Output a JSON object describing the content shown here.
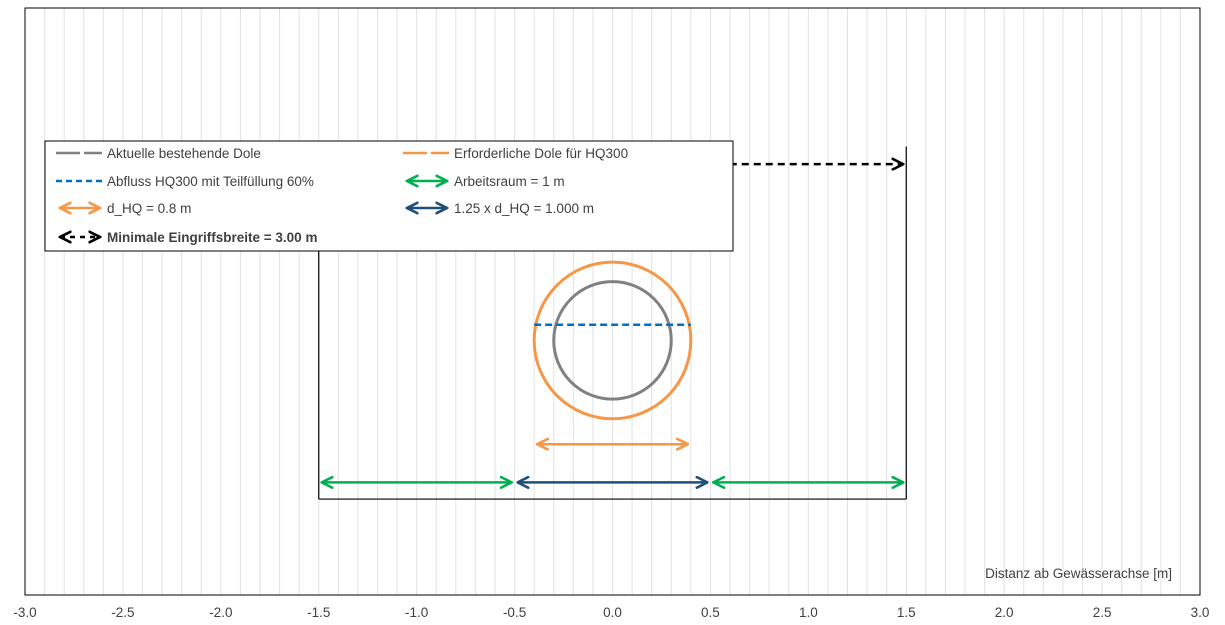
{
  "chart_data": {
    "type": "line",
    "xlabel": "Distanz ab Gewässerachse [m]",
    "xlim": [
      -3.0,
      3.0
    ],
    "ylim": [
      -0.9,
      2.1
    ],
    "grid": "vertical minor",
    "x_ticks": [
      "-3.0",
      "-2.5",
      "-2.0",
      "-1.5",
      "-1.0",
      "-0.5",
      "0.0",
      "0.5",
      "1.0",
      "1.5",
      "2.0",
      "2.5",
      "3.0"
    ],
    "x_tick_values": [
      -3.0,
      -2.5,
      -2.0,
      -1.5,
      -1.0,
      -0.5,
      0.0,
      0.5,
      1.0,
      1.5,
      2.0,
      2.5,
      3.0
    ],
    "legend_position": "top-left",
    "series": [
      {
        "name": "Aktuelle bestehende Dole",
        "kind": "circle",
        "center": [
          0.0,
          0.4
        ],
        "diameter": 0.6,
        "color": "#808080"
      },
      {
        "name": "Erforderliche Dole für HQ300",
        "kind": "circle",
        "center": [
          0.0,
          0.4
        ],
        "diameter": 0.8,
        "color": "#F79646"
      },
      {
        "name": "Abfluss HQ300 mit Teilfüllung 60%",
        "kind": "dashed-line",
        "x": [
          -0.4,
          0.4
        ],
        "y": [
          0.48,
          0.48
        ],
        "color": "#0070C0"
      },
      {
        "name": "Arbeitsraum = 1 m",
        "kind": "double-arrow",
        "segments": [
          {
            "x": [
              -1.5,
              -0.5
            ],
            "y": -0.325
          },
          {
            "x": [
              0.5,
              1.5
            ],
            "y": -0.325
          }
        ],
        "color": "#00B050"
      },
      {
        "name": "d_HQ = 0.8 m",
        "kind": "double-arrow",
        "segments": [
          {
            "x": [
              -0.4,
              0.4
            ],
            "y": -0.13
          }
        ],
        "color": "#F79646"
      },
      {
        "name": "1.25 x d_HQ = 1.000 m",
        "kind": "double-arrow",
        "segments": [
          {
            "x": [
              -0.5,
              0.5
            ],
            "y": -0.325
          }
        ],
        "color": "#1F4E79"
      },
      {
        "name": "Minimale Eingriffsbreite = 3.00 m",
        "kind": "dashed-double-arrow",
        "segments": [
          {
            "x": [
              -1.5,
              1.5
            ],
            "y": 1.3
          }
        ],
        "color": "#000000",
        "bold": true
      }
    ],
    "frame": {
      "kind": "rectangle",
      "x": [
        -1.5,
        1.5
      ],
      "y": [
        -0.41,
        1.39
      ],
      "color": "#000000"
    }
  },
  "legend": {
    "items": [
      {
        "label": "Aktuelle bestehende Dole",
        "symbol": "line",
        "color": "#808080",
        "bold": false
      },
      {
        "label": "Erforderliche Dole für HQ300",
        "symbol": "line",
        "color": "#F79646",
        "bold": false
      },
      {
        "label": "Abfluss HQ300 mit Teilfüllung 60%",
        "symbol": "dash",
        "color": "#0070C0",
        "bold": false
      },
      {
        "label": "Arbeitsraum = 1 m",
        "symbol": "arrow",
        "color": "#00B050",
        "bold": false
      },
      {
        "label": "d_HQ = 0.8 m",
        "symbol": "arrow",
        "color": "#F79646",
        "bold": false
      },
      {
        "label": "1.25 x d_HQ = 1.000 m",
        "symbol": "arrow",
        "color": "#1F4E79",
        "bold": false
      },
      {
        "label": "Minimale Eingriffsbreite = 3.00 m",
        "symbol": "dash-arrow",
        "color": "#000000",
        "bold": true
      }
    ]
  }
}
